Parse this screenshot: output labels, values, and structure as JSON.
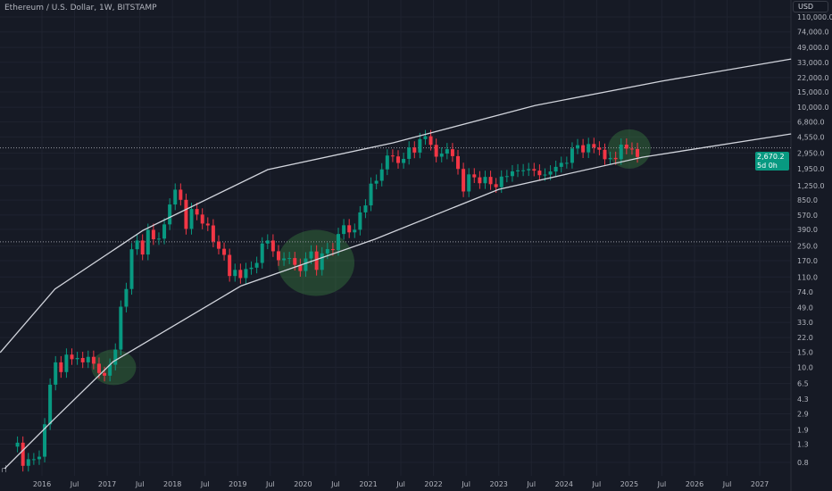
{
  "header": {
    "symbol_title": "Ethereum / U.S. Dollar, 1W, BITSTAMP",
    "currency_button": "USD"
  },
  "last_price": {
    "value": "2,670.2",
    "countdown": "5d 0h",
    "color": "#089981"
  },
  "colors": {
    "background": "#161a25",
    "up": "#089981",
    "down": "#f23645",
    "grid": "#1f2330",
    "text": "#b2b5be",
    "drawing": "#d1d4dc",
    "zone": "#4caf50"
  },
  "chart_data": {
    "type": "candlestick",
    "title": "Ethereum / U.S. Dollar, 1W, BITSTAMP",
    "yscale": "log",
    "ylim": [
      0.65,
      130000
    ],
    "xlim": [
      2015.36,
      2027.6
    ],
    "grid": true,
    "y_ticks": [
      "110,000.0",
      "74,000.0",
      "49,000.0",
      "33,000.0",
      "22,000.0",
      "15,000.0",
      "10,000.0",
      "6,800.0",
      "4,550.0",
      "2,950.0",
      "1,950.0",
      "1,250.0",
      "850.0",
      "570.0",
      "390.0",
      "250.0",
      "170.0",
      "110.0",
      "74.0",
      "49.0",
      "33.0",
      "22.0",
      "15.0",
      "10.0",
      "6.5",
      "4.3",
      "2.9",
      "1.9",
      "1.3",
      "0.8"
    ],
    "x_ticks": [
      {
        "label": "2016",
        "t": 2016
      },
      {
        "label": "Jul",
        "t": 2016.5
      },
      {
        "label": "2017",
        "t": 2017
      },
      {
        "label": "Jul",
        "t": 2017.5
      },
      {
        "label": "2018",
        "t": 2018
      },
      {
        "label": "Jul",
        "t": 2018.5
      },
      {
        "label": "2019",
        "t": 2019
      },
      {
        "label": "Jul",
        "t": 2019.5
      },
      {
        "label": "2020",
        "t": 2020
      },
      {
        "label": "Jul",
        "t": 2020.5
      },
      {
        "label": "2021",
        "t": 2021
      },
      {
        "label": "Jul",
        "t": 2021.5
      },
      {
        "label": "2022",
        "t": 2022
      },
      {
        "label": "Jul",
        "t": 2022.5
      },
      {
        "label": "2023",
        "t": 2023
      },
      {
        "label": "Jul",
        "t": 2023.5
      },
      {
        "label": "2024",
        "t": 2024
      },
      {
        "label": "Jul",
        "t": 2024.5
      },
      {
        "label": "2025",
        "t": 2025
      },
      {
        "label": "Jul",
        "t": 2025.5
      },
      {
        "label": "2026",
        "t": 2026
      },
      {
        "label": "Jul",
        "t": 2026.5
      },
      {
        "label": "2027",
        "t": 2027
      }
    ],
    "start": "2015-08",
    "monthly_closes": [
      1.35,
      0.73,
      0.87,
      0.87,
      0.93,
      2.2,
      6.3,
      11.4,
      8.8,
      14.0,
      12.4,
      12.8,
      11.4,
      13.2,
      11.0,
      8.6,
      8.0,
      10.7,
      16.0,
      50,
      80,
      230,
      290,
      200,
      385,
      300,
      305,
      445,
      755,
      1120,
      855,
      395,
      670,
      578,
      455,
      433,
      282,
      233,
      198,
      113,
      133,
      107,
      136,
      141,
      160,
      268,
      290,
      218,
      172,
      180,
      182,
      152,
      129,
      180,
      217,
      133,
      206,
      231,
      225,
      345,
      435,
      360,
      386,
      612,
      737,
      1314,
      1418,
      1918,
      2773,
      2707,
      2275,
      2536,
      3433,
      3001,
      4288,
      4631,
      3683,
      2688,
      2919,
      3282,
      2727,
      1942,
      1067,
      1680,
      1554,
      1328,
      1572,
      1295,
      1196,
      1585,
      1605,
      1822,
      1870,
      1874,
      1934,
      1857,
      1645,
      1671,
      1815,
      2052,
      2282,
      2283,
      3340,
      3647,
      3015,
      3765,
      3434,
      3232,
      2513,
      2603,
      2518,
      3703,
      3332,
      3300,
      2670.2
    ],
    "drawings": {
      "upper_curve": [
        [
          2015.36,
          14.8
        ],
        [
          2016.2,
          80
        ],
        [
          2017.55,
          380
        ],
        [
          2019.46,
          1905
        ],
        [
          2021.38,
          3880
        ],
        [
          2023.56,
          10500
        ],
        [
          2025.5,
          20000
        ],
        [
          2027.48,
          36000
        ]
      ],
      "lower_curve": [
        [
          2015.43,
          0.68
        ],
        [
          2016.18,
          2.5
        ],
        [
          2017.09,
          11.6
        ],
        [
          2019.05,
          87
        ],
        [
          2021.1,
          300
        ],
        [
          2023.0,
          1130
        ],
        [
          2025.2,
          2650
        ],
        [
          2027.48,
          4920
        ]
      ],
      "horizontal_lines": [
        3400,
        280
      ],
      "highlight_zones": [
        {
          "t": 2017.1,
          "price": 10,
          "rx": 25,
          "ry": 20
        },
        {
          "t": 2020.2,
          "price": 160,
          "rx": 43,
          "ry": 37
        },
        {
          "t": 2025.0,
          "price": 3300,
          "rx": 24,
          "ry": 22
        }
      ]
    }
  }
}
